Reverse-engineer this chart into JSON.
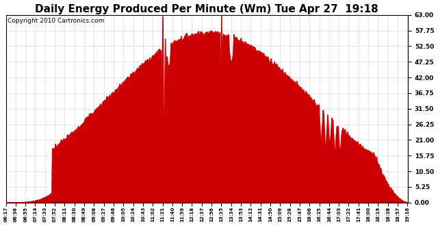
{
  "title": "Daily Energy Produced Per Minute (Wm) Tue Apr 27  19:18",
  "copyright": "Copyright 2010 Cartronics.com",
  "yticks": [
    0.0,
    5.25,
    10.5,
    15.75,
    21.0,
    26.25,
    31.5,
    36.75,
    42.0,
    47.25,
    52.5,
    57.75,
    63.0
  ],
  "ymax": 63.0,
  "ymin": 0.0,
  "line_color": "#cc0000",
  "background_color": "#ffffff",
  "grid_color": "#bbbbbb",
  "title_fontsize": 11,
  "copyright_fontsize": 6.5,
  "tick_interval_min": 19,
  "x_start_min": 377,
  "x_end_min": 1157
}
